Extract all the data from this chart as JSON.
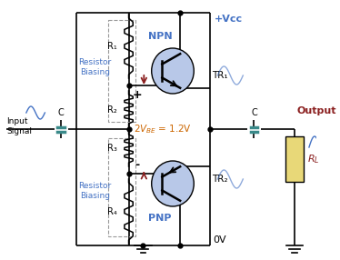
{
  "bg_color": "#ffffff",
  "line_color": "#000000",
  "blue_color": "#4472c4",
  "dashed_box_color": "#999999",
  "transistor_fill": "#b8c8e8",
  "resistor_rl_fill": "#e8d878",
  "cap_fill": "#3a8a8a",
  "arrow_color": "#8b2020",
  "vbe_color": "#cc6600",
  "vcc_label": "+Vcc",
  "gnd_label": "0V",
  "npn_label": "NPN",
  "pnp_label": "PNP",
  "tr1_label": "TR₁",
  "tr2_label": "TR₂",
  "r1_label": "R₁",
  "r2_label": "R₂",
  "r3_label": "R₃",
  "r4_label": "R₄",
  "c_label": "C",
  "input_label": "Input\nSignal",
  "output_label": "Output",
  "resistor_bias_label": "Resistor\nBiasing",
  "plus_label": "+",
  "minus_label": "-"
}
